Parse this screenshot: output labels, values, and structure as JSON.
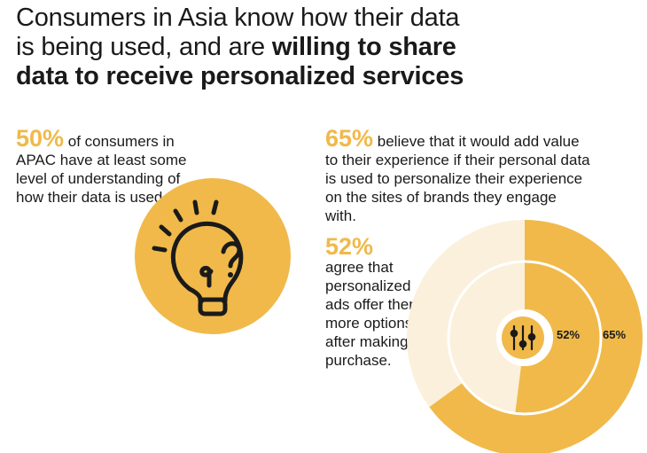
{
  "headline": {
    "line1": "Consumers in Asia know how their data",
    "line2_regular": "is being used, and are ",
    "line2_bold": "willing to share",
    "line3_bold": "data to receive personalized services"
  },
  "left_stat": {
    "value": "50%",
    "text": " of consumers in APAC have at least some level of understanding of how their data is used."
  },
  "right_stat": {
    "value": "65%",
    "text": " believe that it would add value to their experience if their personal data is used to personalize their experience on the sites of brands they engage with."
  },
  "lower_stat": {
    "value": "52%",
    "text": "agree that personalized ads offer them more options after making a purchase."
  },
  "icons": [
    "lightbulb-question-icon",
    "sliders-icon"
  ],
  "colors": {
    "accent": "#f0b94a",
    "ring_track": "#fbf0dc",
    "text": "#1a1a1a"
  },
  "chart_data": {
    "type": "donut",
    "series": [
      {
        "name": "",
        "value": 65,
        "label": "65%"
      },
      {
        "name": "",
        "value": 52,
        "label": "52%"
      }
    ],
    "max": 100
  }
}
